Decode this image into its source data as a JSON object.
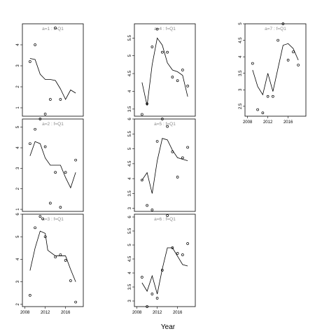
{
  "chart_data": {
    "type": "scatter",
    "xlabel": "Year",
    "x_ticks": [
      2008,
      2012,
      2016
    ],
    "xlim": [
      2007.5,
      2019.5
    ],
    "panels": [
      {
        "label": "a=1 : f=Q1",
        "ylim": [
          0.6,
          5.0
        ],
        "y_ticks": [
          1,
          2,
          3,
          4
        ],
        "points": [
          [
            2009,
            3.2
          ],
          [
            2010,
            4.0
          ],
          [
            2012,
            0.7
          ],
          [
            2013,
            1.4
          ],
          [
            2014,
            4.8
          ],
          [
            2015,
            1.4
          ]
        ],
        "line": [
          [
            2009,
            3.35
          ],
          [
            2010,
            3.3
          ],
          [
            2011,
            2.6
          ],
          [
            2012,
            2.35
          ],
          [
            2013,
            2.35
          ],
          [
            2014,
            2.3
          ],
          [
            2015,
            1.9
          ],
          [
            2016,
            1.4
          ],
          [
            2017,
            1.85
          ],
          [
            2018,
            1.7
          ]
        ]
      },
      {
        "label": "a=2 : f=Q1",
        "ylim": [
          0.9,
          5.4
        ],
        "y_ticks": [
          1,
          2,
          3,
          4,
          5
        ],
        "points": [
          [
            2009,
            4.2
          ],
          [
            2010,
            4.9
          ],
          [
            2011,
            5.4
          ],
          [
            2012,
            4.05
          ],
          [
            2013,
            1.3
          ],
          [
            2014,
            2.8
          ],
          [
            2015,
            1.1
          ],
          [
            2016,
            2.8
          ],
          [
            2018,
            3.4
          ]
        ],
        "line": [
          [
            2009,
            3.6
          ],
          [
            2010,
            4.3
          ],
          [
            2011,
            4.2
          ],
          [
            2012,
            3.5
          ],
          [
            2013,
            3.15
          ],
          [
            2014,
            3.15
          ],
          [
            2015,
            3.15
          ],
          [
            2016,
            2.55
          ],
          [
            2017,
            2.05
          ],
          [
            2018,
            2.8
          ]
        ]
      },
      {
        "label": "a=3 : f=Q1",
        "ylim": [
          1.9,
          6.0
        ],
        "y_ticks": [
          2,
          3,
          4,
          5,
          6
        ],
        "points": [
          [
            2009,
            2.4
          ],
          [
            2010,
            5.4
          ],
          [
            2011,
            5.9
          ],
          [
            2011.5,
            5.8
          ],
          [
            2012,
            5.0
          ],
          [
            2014,
            4.1
          ],
          [
            2015,
            4.2
          ],
          [
            2016,
            3.95
          ],
          [
            2017,
            3.05
          ],
          [
            2018,
            2.1
          ]
        ],
        "line": [
          [
            2009,
            3.5
          ],
          [
            2010,
            4.5
          ],
          [
            2011,
            5.25
          ],
          [
            2012,
            5.15
          ],
          [
            2012.5,
            4.4
          ],
          [
            2014,
            4.15
          ],
          [
            2015,
            4.15
          ],
          [
            2016,
            4.15
          ],
          [
            2017,
            3.55
          ],
          [
            2018,
            3.0
          ]
        ]
      },
      {
        "label": "a=4 : f=Q1",
        "ylim": [
          3.3,
          5.9
        ],
        "y_ticks": [
          3.5,
          4.0,
          4.5,
          5.0,
          5.5
        ],
        "points": [
          [
            2009,
            3.35
          ],
          [
            2010,
            3.65
          ],
          [
            2011,
            5.25
          ],
          [
            2012,
            5.75
          ],
          [
            2013,
            5.1
          ],
          [
            2014,
            5.1
          ],
          [
            2015,
            4.4
          ],
          [
            2016,
            4.3
          ],
          [
            2017,
            4.6
          ],
          [
            2018,
            4.15
          ]
        ],
        "line": [
          [
            2009,
            4.25
          ],
          [
            2010,
            3.6
          ],
          [
            2011,
            4.75
          ],
          [
            2012,
            5.5
          ],
          [
            2013,
            5.3
          ],
          [
            2014,
            4.8
          ],
          [
            2015,
            4.6
          ],
          [
            2016,
            4.55
          ],
          [
            2017,
            4.45
          ],
          [
            2018,
            3.85
          ]
        ]
      },
      {
        "label": "a=5 : f=Q1",
        "ylim": [
          2.9,
          6.0
        ],
        "y_ticks": [
          3.0,
          3.5,
          4.0,
          4.5,
          5.0,
          5.5,
          6.0
        ],
        "points": [
          [
            2009,
            3.95
          ],
          [
            2010,
            3.1
          ],
          [
            2011,
            2.95
          ],
          [
            2012,
            5.25
          ],
          [
            2013,
            6.0
          ],
          [
            2014,
            5.75
          ],
          [
            2015,
            4.9
          ],
          [
            2016,
            4.05
          ],
          [
            2017,
            4.7
          ],
          [
            2018,
            5.05
          ]
        ],
        "line": [
          [
            2009,
            3.95
          ],
          [
            2010,
            4.2
          ],
          [
            2011,
            3.5
          ],
          [
            2012,
            4.6
          ],
          [
            2013,
            5.35
          ],
          [
            2014,
            5.3
          ],
          [
            2015,
            4.95
          ],
          [
            2016,
            4.7
          ],
          [
            2017,
            4.65
          ],
          [
            2018,
            4.6
          ]
        ]
      },
      {
        "label": "a=6 : f=Q1",
        "ylim": [
          2.8,
          6.1
        ],
        "y_ticks": [
          3.0,
          3.5,
          4.0,
          4.5,
          5.0,
          5.5,
          6.0
        ],
        "points": [
          [
            2009,
            3.85
          ],
          [
            2010,
            2.8
          ],
          [
            2011,
            3.25
          ],
          [
            2012,
            3.1
          ],
          [
            2013,
            4.1
          ],
          [
            2014,
            6.05
          ],
          [
            2015,
            4.9
          ],
          [
            2016,
            4.7
          ],
          [
            2017,
            4.65
          ],
          [
            2018,
            5.05
          ]
        ],
        "line": [
          [
            2009,
            3.65
          ],
          [
            2010,
            3.35
          ],
          [
            2011,
            3.9
          ],
          [
            2012,
            3.25
          ],
          [
            2013,
            4.15
          ],
          [
            2014,
            4.9
          ],
          [
            2015,
            4.9
          ],
          [
            2016,
            4.6
          ],
          [
            2017,
            4.3
          ],
          [
            2018,
            4.25
          ]
        ]
      },
      {
        "label": "a=7 : f=Q1",
        "ylim": [
          2.2,
          5.0
        ],
        "y_ticks": [
          2.5,
          3.0,
          3.5,
          4.0,
          4.5,
          5.0
        ],
        "points": [
          [
            2009,
            3.8
          ],
          [
            2010,
            2.4
          ],
          [
            2011,
            2.3
          ],
          [
            2012,
            2.8
          ],
          [
            2013,
            2.8
          ],
          [
            2014,
            4.5
          ],
          [
            2015,
            5.0
          ],
          [
            2016,
            3.9
          ],
          [
            2017,
            4.15
          ],
          [
            2018,
            3.75
          ]
        ],
        "line": [
          [
            2009,
            3.6
          ],
          [
            2010,
            3.1
          ],
          [
            2011,
            2.85
          ],
          [
            2012,
            3.5
          ],
          [
            2013,
            2.95
          ],
          [
            2014,
            3.65
          ],
          [
            2015,
            4.35
          ],
          [
            2016,
            4.4
          ],
          [
            2017,
            4.25
          ],
          [
            2018,
            3.9
          ]
        ]
      }
    ]
  }
}
